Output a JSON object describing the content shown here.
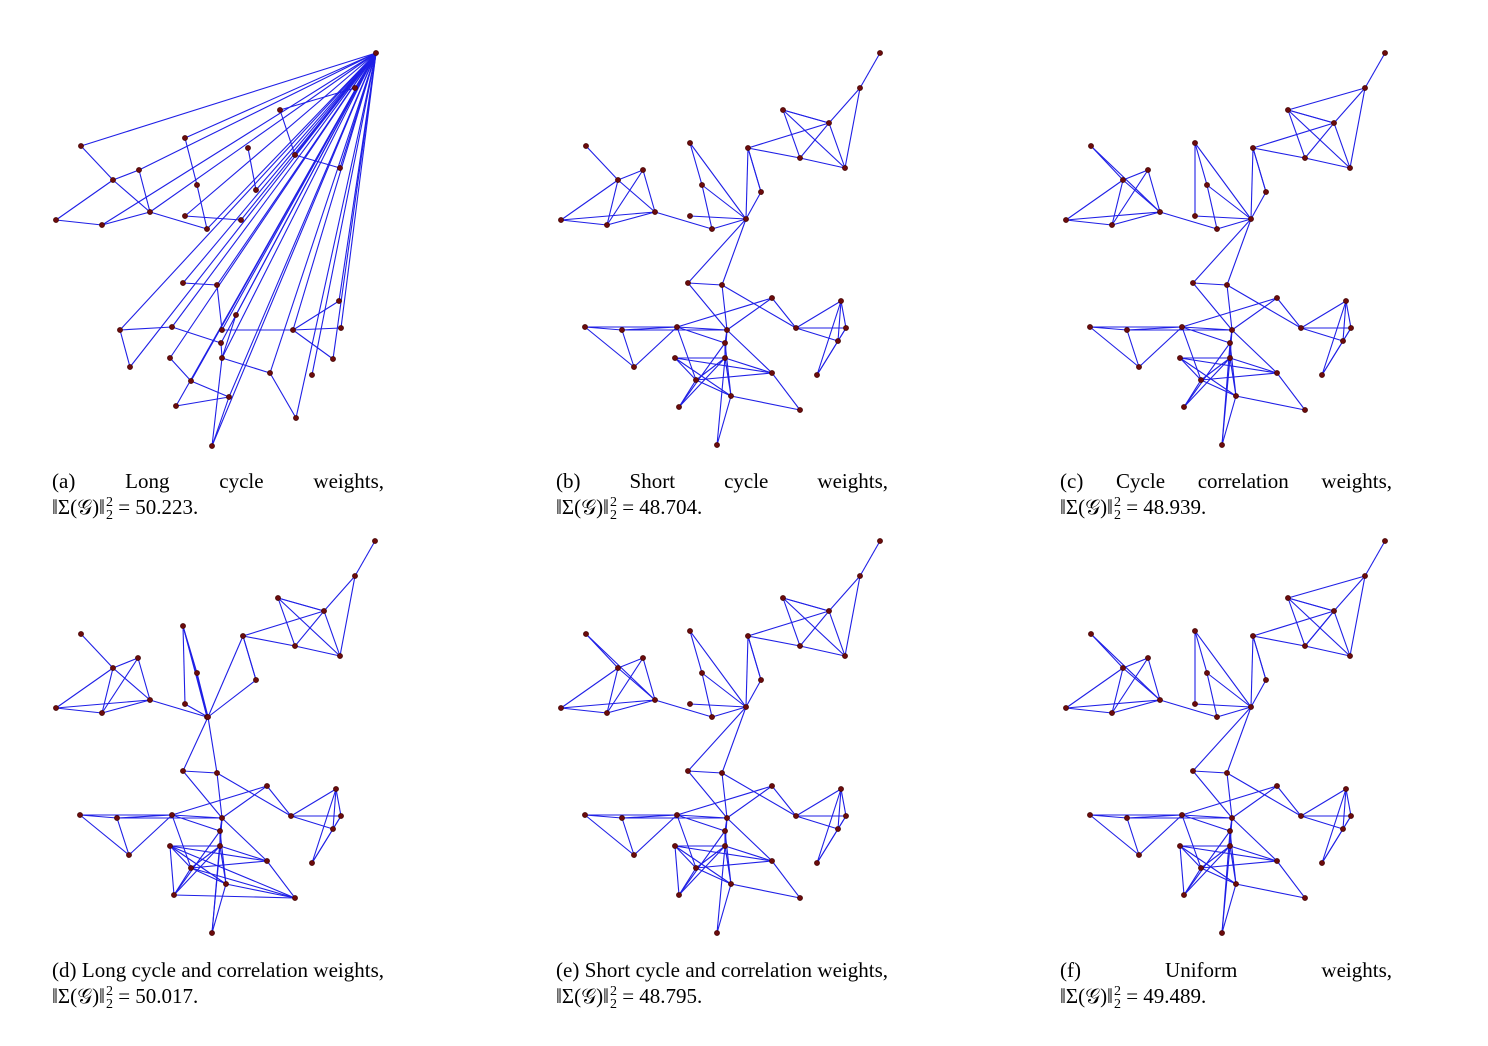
{
  "colors": {
    "edge": "#1f1fe6",
    "node_fill": "#6b0b0b",
    "node_stroke": "#3a0000"
  },
  "panels": [
    {
      "id": "a",
      "caption_text": "(a) Long cycle weights,",
      "caption_math": "‖Σ(𝒢)‖",
      "sup": "2",
      "sub": "2",
      "caption_value": "= 50.223.",
      "variant": "a"
    },
    {
      "id": "b",
      "caption_text": "(b) Short cycle weights,",
      "caption_math": "‖Σ(𝒢)‖",
      "sup": "2",
      "sub": "2",
      "caption_value": "= 48.704.",
      "variant": "b"
    },
    {
      "id": "c",
      "caption_text": "(c) Cycle correlation weights,",
      "caption_math": "‖Σ(𝒢)‖",
      "sup": "2",
      "sub": "2",
      "caption_value": "= 48.939.",
      "variant": "c"
    },
    {
      "id": "d",
      "caption_text": "(d) Long cycle and correlation weights,",
      "caption_math": "‖Σ(𝒢)‖",
      "sup": "2",
      "sub": "2",
      "caption_value": "= 50.017.",
      "variant": "d"
    },
    {
      "id": "e",
      "caption_text": "(e) Short cycle and correlation weights,",
      "caption_math": "‖Σ(𝒢)‖",
      "sup": "2",
      "sub": "2",
      "caption_value": "= 48.795.",
      "variant": "e"
    },
    {
      "id": "f",
      "caption_text": "(f) Uniform weights,",
      "caption_math": "‖Σ(𝒢)‖",
      "sup": "2",
      "sub": "2",
      "caption_value": "= 49.489.",
      "variant": "f"
    }
  ]
}
